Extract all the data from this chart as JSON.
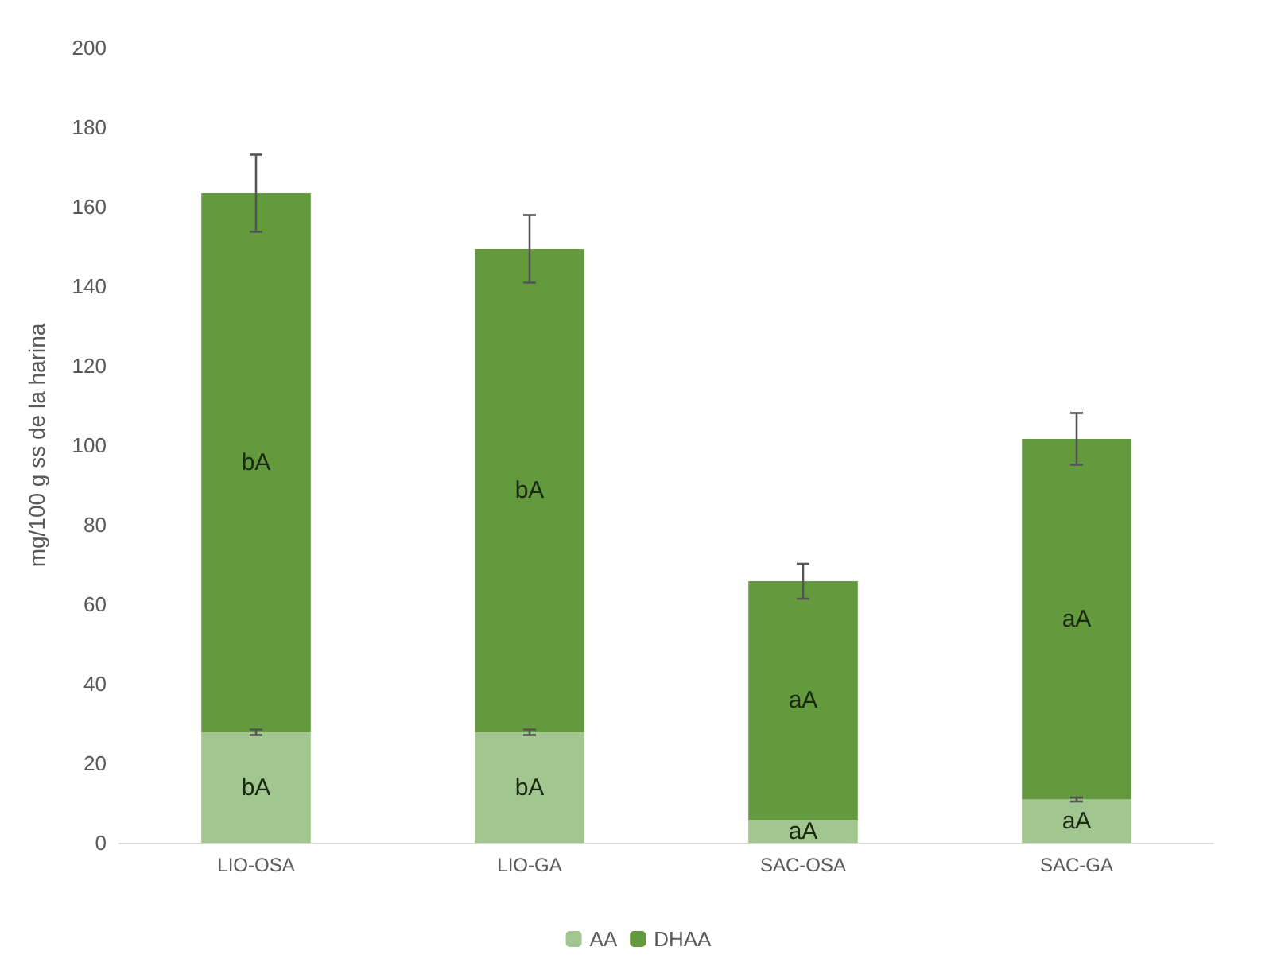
{
  "chart_data": {
    "type": "bar",
    "ylabel": "mg/100 g ss de la harina",
    "categories": [
      "LIO-OSA",
      "LIO-GA",
      "SAC-OSA",
      "SAC-GA"
    ],
    "stacked": true,
    "series": [
      {
        "name": "AA",
        "color": "#a2c68f",
        "values": [
          27.8,
          27.8,
          5.8,
          10.9
        ],
        "errors": [
          0.7,
          0.7,
          null,
          0.5
        ],
        "value_labels": [
          "bA",
          "bA",
          "aA",
          "aA"
        ]
      },
      {
        "name": "DHAA",
        "color": "#639a3d",
        "values": [
          135.6,
          121.6,
          60,
          90.7
        ],
        "errors": [
          9.7,
          8.5,
          4.4,
          6.5
        ],
        "value_labels": [
          "bA",
          "bA",
          "aA",
          "aA"
        ]
      }
    ],
    "ylim": [
      0,
      200
    ],
    "yticks": [
      0,
      20,
      40,
      60,
      80,
      100,
      120,
      140,
      160,
      180,
      200
    ],
    "grid": false,
    "legend": "bottom"
  }
}
